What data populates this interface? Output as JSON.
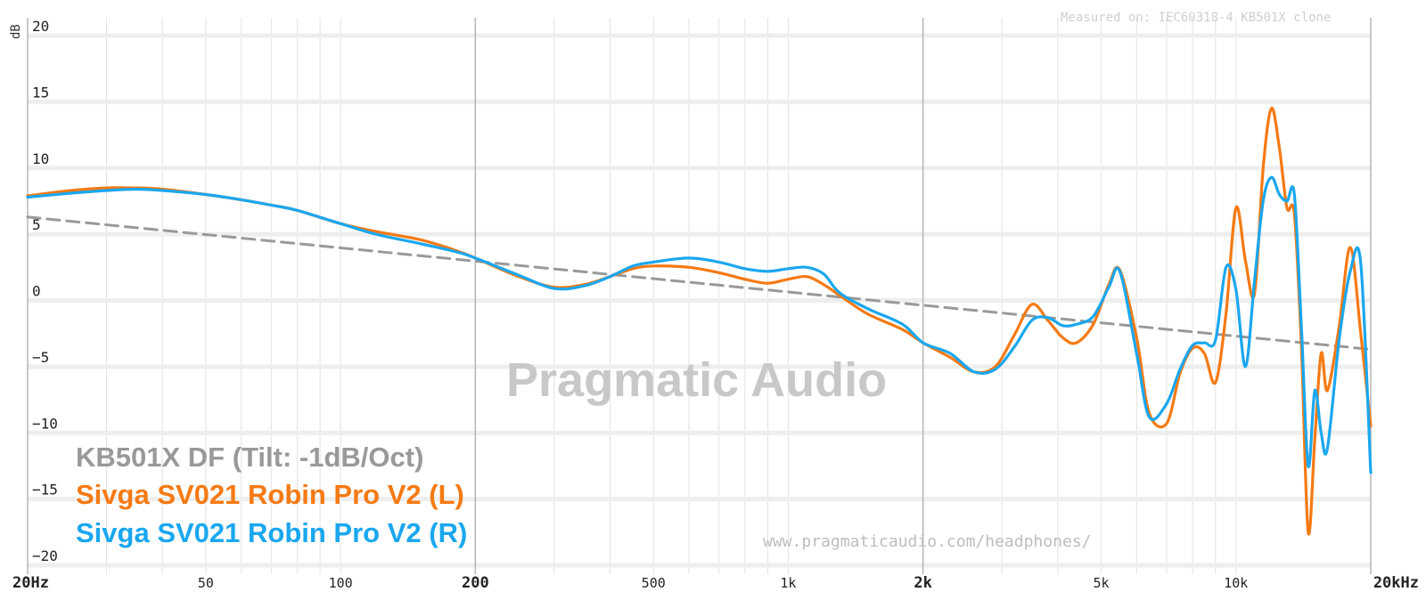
{
  "chart_data": {
    "type": "line",
    "ylabel": "dB",
    "xscale": "log",
    "xlim": [
      20,
      20000
    ],
    "ylim": [
      -20,
      20
    ],
    "y_ticks": [
      20,
      15,
      10,
      5,
      0,
      -5,
      -10,
      -15,
      -20
    ],
    "y_tick_labels": [
      "20",
      "15",
      "10",
      "5",
      "0",
      "−5",
      "−10",
      "−15",
      "−20"
    ],
    "x_ticks": [
      20,
      50,
      100,
      200,
      500,
      1000,
      2000,
      5000,
      10000,
      20000
    ],
    "x_tick_labels": [
      "20Hz",
      "50",
      "100",
      "200",
      "500",
      "1k",
      "2k",
      "5k",
      "10k",
      "20kHz"
    ],
    "grid": true,
    "annotation_top": "Measured on: IEC60318-4 KB501X clone",
    "annotation_bottom": "www.pragmaticaudio.com/headphones/",
    "watermark": "Pragmatic Audio",
    "legend_position": "bottom-left",
    "series": [
      {
        "name": "KB501X DF (Tilt: -1dB/Oct)",
        "color": "#999999",
        "style": "dashed",
        "x": [
          20,
          20000
        ],
        "y": [
          6.3,
          -3.7
        ]
      },
      {
        "name": "Sivga SV021 Robin Pro V2 (L)",
        "color": "#f57a14",
        "style": "solid",
        "x": [
          20,
          25,
          30,
          35,
          40,
          50,
          60,
          70,
          80,
          100,
          120,
          150,
          180,
          200,
          250,
          300,
          350,
          400,
          450,
          500,
          600,
          700,
          800,
          900,
          1000,
          1100,
          1200,
          1300,
          1500,
          1800,
          2000,
          2300,
          2600,
          2900,
          3200,
          3500,
          3800,
          4100,
          4400,
          4800,
          5200,
          5500,
          6000,
          6400,
          7000,
          7500,
          8000,
          8500,
          9000,
          9500,
          10000,
          10500,
          11000,
          11500,
          12000,
          12500,
          13000,
          13500,
          14000,
          14500,
          15000,
          15500,
          16000,
          17000,
          18000,
          19000,
          20000
        ],
        "y": [
          7.9,
          8.3,
          8.5,
          8.5,
          8.4,
          8.0,
          7.6,
          7.2,
          6.8,
          5.8,
          5.2,
          4.6,
          3.8,
          3.2,
          1.8,
          1.0,
          1.2,
          1.8,
          2.4,
          2.6,
          2.5,
          2.1,
          1.6,
          1.3,
          1.6,
          1.8,
          1.2,
          0.4,
          -1.0,
          -2.2,
          -3.2,
          -4.3,
          -5.4,
          -5.0,
          -2.6,
          -0.3,
          -1.5,
          -2.8,
          -3.2,
          -1.8,
          1.2,
          2.3,
          -2.8,
          -8.5,
          -9.3,
          -5.5,
          -3.6,
          -4.0,
          -6.2,
          -1.0,
          7.0,
          3.0,
          0.5,
          10.0,
          14.5,
          11.5,
          7.0,
          6.5,
          -3.5,
          -17.5,
          -10.5,
          -4.0,
          -6.8,
          -2.0,
          4.0,
          -2.5,
          -9.5
        ]
      },
      {
        "name": "Sivga SV021 Robin Pro V2 (R)",
        "color": "#1aa7ef",
        "style": "solid",
        "x": [
          20,
          25,
          30,
          35,
          40,
          50,
          60,
          70,
          80,
          100,
          120,
          150,
          180,
          200,
          250,
          300,
          350,
          400,
          450,
          500,
          600,
          700,
          800,
          900,
          1000,
          1100,
          1200,
          1300,
          1500,
          1800,
          2000,
          2300,
          2600,
          2900,
          3200,
          3500,
          3800,
          4100,
          4400,
          4800,
          5200,
          5500,
          6000,
          6400,
          7000,
          7500,
          8000,
          8500,
          9000,
          9500,
          10000,
          10500,
          11000,
          11500,
          12000,
          12500,
          13000,
          13500,
          14000,
          14500,
          15000,
          15500,
          16000,
          17000,
          18000,
          19000,
          20000
        ],
        "y": [
          7.8,
          8.1,
          8.3,
          8.4,
          8.3,
          8.0,
          7.6,
          7.2,
          6.8,
          5.8,
          5.0,
          4.3,
          3.7,
          3.2,
          1.9,
          0.9,
          1.1,
          1.8,
          2.6,
          2.9,
          3.2,
          2.9,
          2.4,
          2.2,
          2.4,
          2.5,
          2.0,
          0.6,
          -0.6,
          -1.8,
          -3.2,
          -4.0,
          -5.4,
          -5.2,
          -3.5,
          -1.5,
          -1.3,
          -1.9,
          -1.8,
          -1.2,
          1.0,
          2.2,
          -4.0,
          -8.8,
          -7.8,
          -5.2,
          -3.4,
          -3.2,
          -3.0,
          2.5,
          0.8,
          -5.0,
          1.5,
          7.5,
          9.3,
          8.0,
          7.5,
          8.0,
          -2.0,
          -12.5,
          -6.8,
          -10.0,
          -11.2,
          -3.0,
          2.2,
          2.8,
          -13.0
        ]
      }
    ]
  }
}
